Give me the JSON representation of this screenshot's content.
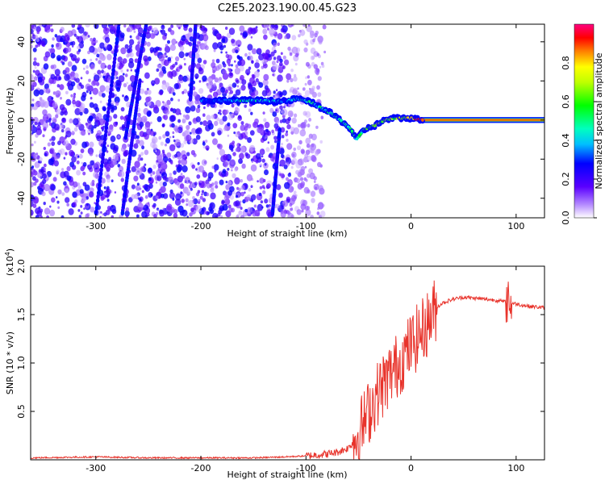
{
  "title": "C2E5.2023.190.00.45.G23",
  "chart_data": [
    {
      "type": "heatmap",
      "title": "",
      "xlabel": "Height of straight line (km)",
      "ylabel": "Frequency (Hz)",
      "xlim": [
        -362,
        127
      ],
      "ylim": [
        -50,
        49
      ],
      "xticks": [
        -300,
        -200,
        -100,
        0,
        100
      ],
      "yticks": [
        -40,
        -20,
        0,
        20,
        40
      ],
      "ridge": [
        {
          "x": -200,
          "f": 10,
          "a": 0.35
        },
        {
          "x": -180,
          "f": 10,
          "a": 0.3
        },
        {
          "x": -162,
          "f": 10,
          "a": 0.5
        },
        {
          "x": -148,
          "f": 10,
          "a": 0.45
        },
        {
          "x": -120,
          "f": 9.5,
          "a": 0.35
        },
        {
          "x": -108,
          "f": 11,
          "a": 0.45
        },
        {
          "x": -95,
          "f": 9,
          "a": 0.5
        },
        {
          "x": -85,
          "f": 6,
          "a": 0.55
        },
        {
          "x": -75,
          "f": 3,
          "a": 0.5
        },
        {
          "x": -65,
          "f": -1,
          "a": 0.55
        },
        {
          "x": -57,
          "f": -5,
          "a": 0.5
        },
        {
          "x": -52,
          "f": -10,
          "a": 0.5
        },
        {
          "x": -45,
          "f": -5,
          "a": 0.55
        },
        {
          "x": -35,
          "f": -3,
          "a": 0.65
        },
        {
          "x": -25,
          "f": 0,
          "a": 0.7
        },
        {
          "x": -15,
          "f": 1,
          "a": 0.7
        },
        {
          "x": 0,
          "f": 1,
          "a": 0.75
        },
        {
          "x": 10,
          "f": 0,
          "a": 0.95
        },
        {
          "x": 127,
          "f": 0,
          "a": 0.95
        }
      ],
      "colorbar": {
        "label": "Normalized spectral amplitude",
        "range": [
          0,
          1
        ],
        "ticks": [
          "0.0",
          "0.2",
          "0.4",
          "0.6",
          "0.8"
        ]
      }
    },
    {
      "type": "line",
      "title": "",
      "xlabel": "Height of straight line (km)",
      "ylabel": "SNR (10 * v/v)",
      "yscale_label": "(x10",
      "yscale_exp": "4",
      "yscale_close": ")",
      "xlim": [
        -362,
        127
      ],
      "ylim": [
        0,
        2.0
      ],
      "xticks": [
        -300,
        -200,
        -100,
        0,
        100
      ],
      "yticks": [
        "0.5",
        "1.0",
        "1.5",
        "2.0"
      ],
      "series": [
        {
          "name": "SNR",
          "color": "#e8332b",
          "x": [
            -362,
            -300,
            -250,
            -200,
            -150,
            -120,
            -100,
            -90,
            -80,
            -70,
            -60,
            -55,
            -50,
            -45,
            -40,
            -35,
            -30,
            -25,
            -20,
            -15,
            -10,
            -5,
            0,
            5,
            10,
            15,
            20,
            25,
            30,
            40,
            50,
            60,
            70,
            80,
            90,
            100,
            110,
            127
          ],
          "values": [
            0.02,
            0.03,
            0.02,
            0.02,
            0.02,
            0.03,
            0.04,
            0.05,
            0.06,
            0.08,
            0.12,
            0.18,
            0.28,
            0.38,
            0.5,
            0.62,
            0.72,
            0.8,
            0.88,
            0.95,
            1.02,
            1.1,
            1.18,
            1.25,
            1.32,
            1.4,
            1.5,
            1.58,
            1.62,
            1.66,
            1.68,
            1.67,
            1.66,
            1.65,
            1.63,
            1.61,
            1.59,
            1.57
          ]
        }
      ]
    }
  ]
}
